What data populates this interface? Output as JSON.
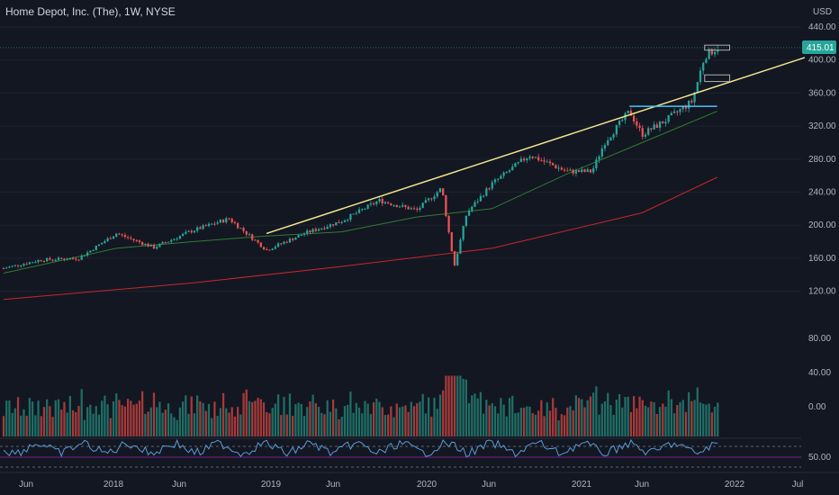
{
  "header": {
    "title": "Home Depot, Inc. (The), 1W, NYSE",
    "currency": "USD"
  },
  "colors": {
    "background": "#131722",
    "up": "#26a69a",
    "down": "#ef5350",
    "trendline": "#f0e68c",
    "ma_fast": "#2e7d32",
    "ma_slow": "#c62828",
    "rsi": "#5b9bd5"
  },
  "chart_data": {
    "type": "candlestick",
    "price_axis": {
      "min": 100,
      "max": 440,
      "ticks": [
        "440.00",
        "400.00",
        "360.00",
        "320.00",
        "280.00",
        "240.00",
        "200.00",
        "160.00",
        "120.00"
      ],
      "last_price": "415.01"
    },
    "volume_axis": {
      "ticks": [
        "80.00",
        "40.00",
        "0.00"
      ]
    },
    "rsi_axis": {
      "ticks": [
        "50.00"
      ]
    },
    "x_labels": [
      "Jun",
      "2018",
      "Jun",
      "2019",
      "Jun",
      "2020",
      "Jun",
      "2021",
      "Jun",
      "2022",
      "Jul"
    ],
    "x_range": [
      "2017-03",
      "2022-07"
    ],
    "price_path": [
      [
        "2017-03",
        148
      ],
      [
        "2017-06",
        158
      ],
      [
        "2017-09",
        160
      ],
      [
        "2017-12",
        190
      ],
      [
        "2018-03",
        173
      ],
      [
        "2018-06",
        193
      ],
      [
        "2018-09",
        208
      ],
      [
        "2018-12",
        170
      ],
      [
        "2019-03",
        190
      ],
      [
        "2019-06",
        205
      ],
      [
        "2019-09",
        230
      ],
      [
        "2019-12",
        218
      ],
      [
        "2020-02",
        245
      ],
      [
        "2020-03",
        150
      ],
      [
        "2020-04",
        215
      ],
      [
        "2020-06",
        250
      ],
      [
        "2020-09",
        285
      ],
      [
        "2020-12",
        265
      ],
      [
        "2021-02",
        265
      ],
      [
        "2021-03",
        300
      ],
      [
        "2021-05",
        338
      ],
      [
        "2021-06",
        310
      ],
      [
        "2021-08",
        328
      ],
      [
        "2021-10",
        350
      ],
      [
        "2021-11",
        405
      ],
      [
        "2021-12",
        415
      ]
    ],
    "ma_fast": [
      [
        "2017-03",
        142
      ],
      [
        "2017-12",
        172
      ],
      [
        "2018-06",
        180
      ],
      [
        "2018-12",
        187
      ],
      [
        "2019-06",
        192
      ],
      [
        "2019-12",
        210
      ],
      [
        "2020-06",
        220
      ],
      [
        "2020-12",
        262
      ],
      [
        "2021-06",
        300
      ],
      [
        "2021-12",
        338
      ]
    ],
    "ma_slow": [
      [
        "2017-03",
        110
      ],
      [
        "2018-06",
        130
      ],
      [
        "2019-06",
        150
      ],
      [
        "2020-06",
        172
      ],
      [
        "2021-06",
        215
      ],
      [
        "2021-12",
        258
      ]
    ],
    "trendline": {
      "start": [
        "2018-12",
        190
      ],
      "end": [
        "2022-07",
        403
      ]
    },
    "resistance": {
      "start": [
        "2021-05",
        344
      ],
      "end": [
        "2021-12",
        344
      ]
    },
    "boxes": [
      {
        "start": [
          "2021-11",
          418
        ],
        "end": [
          "2022-01",
          412
        ]
      },
      {
        "start": [
          "2021-11",
          382
        ],
        "end": [
          "2022-01",
          374
        ]
      }
    ]
  }
}
